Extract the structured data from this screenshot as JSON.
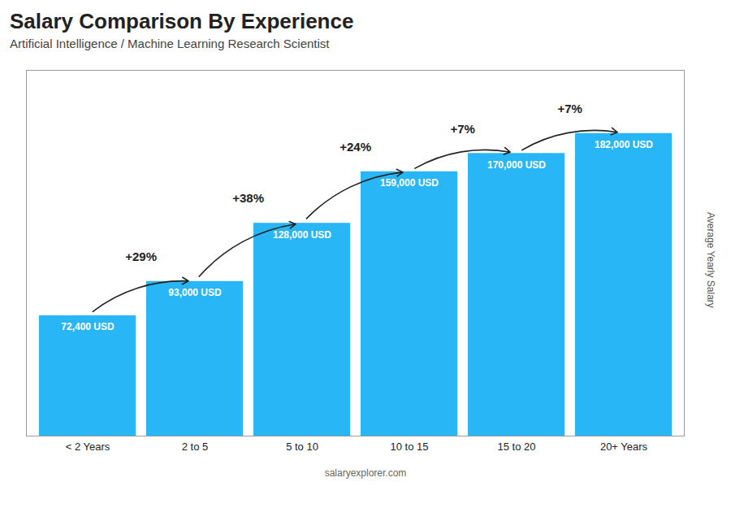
{
  "chart_data": {
    "type": "bar",
    "title": "Salary Comparison By Experience",
    "subtitle": "Artificial Intelligence / Machine Learning Research Scientist",
    "ylabel": "Average Yearly Salary",
    "caption": "salaryexplorer.com",
    "categories": [
      "< 2 Years",
      "2 to 5",
      "5 to 10",
      "10 to 15",
      "15 to 20",
      "20+ Years"
    ],
    "values": [
      72400,
      93000,
      128000,
      159000,
      170000,
      182000
    ],
    "value_labels": [
      "72,400 USD",
      "93,000 USD",
      "128,000 USD",
      "159,000 USD",
      "170,000 USD",
      "182,000 USD"
    ],
    "data_labels": true,
    "annotations": [
      "+29%",
      "+38%",
      "+24%",
      "+7%",
      "+7%"
    ],
    "color": "#29b6f6",
    "ylim": [
      0,
      220000
    ],
    "yticks": [],
    "tick_labels": "x",
    "grid": false
  }
}
